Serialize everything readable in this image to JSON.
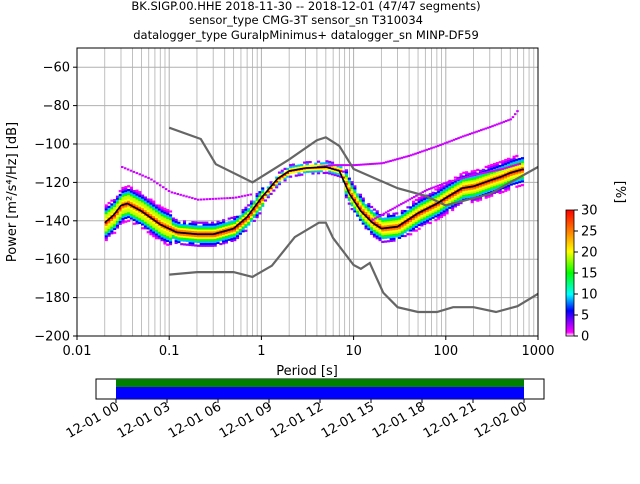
{
  "chart_data": {
    "type": "heatmap",
    "title_lines": [
      "BK.SIGP.00.HHE   2018-11-30 -- 2018-12-01  (47/47 segments)",
      "sensor_type CMG-3T sensor_sn T310034",
      "datalogger_type GuralpMinimus+ datalogger_sn MINP-DF59"
    ],
    "xlabel": "Period [s]",
    "ylabel": "Power [m²/s⁴/Hz] [dB]",
    "xscale": "log",
    "xlim": [
      0.01,
      1000
    ],
    "ylim": [
      -200,
      -50
    ],
    "xticks": [
      {
        "value": 0.01,
        "label": "0.01"
      },
      {
        "value": 0.1,
        "label": "0.1"
      },
      {
        "value": 1,
        "label": "1"
      },
      {
        "value": 10,
        "label": "10"
      },
      {
        "value": 100,
        "label": "100"
      },
      {
        "value": 1000,
        "label": "1000"
      }
    ],
    "yticks": [
      {
        "value": -60,
        "label": "−60"
      },
      {
        "value": -80,
        "label": "−80"
      },
      {
        "value": -100,
        "label": "−100"
      },
      {
        "value": -120,
        "label": "−120"
      },
      {
        "value": -140,
        "label": "−140"
      },
      {
        "value": -160,
        "label": "−160"
      },
      {
        "value": -180,
        "label": "−180"
      },
      {
        "value": -200,
        "label": "−200"
      }
    ],
    "grid": true,
    "noise_model_high": [
      [
        0.1,
        -91.5
      ],
      [
        0.22,
        -97.4
      ],
      [
        0.32,
        -110.5
      ],
      [
        0.8,
        -120
      ],
      [
        2,
        -108
      ],
      [
        4,
        -98
      ],
      [
        5,
        -96.5
      ],
      [
        7,
        -101
      ],
      [
        10,
        -113
      ],
      [
        30,
        -123
      ],
      [
        60,
        -127
      ],
      [
        100,
        -132
      ],
      [
        300,
        -126
      ],
      [
        1000,
        -112
      ]
    ],
    "noise_model_low": [
      [
        0.1,
        -168
      ],
      [
        0.2,
        -166.7
      ],
      [
        0.5,
        -166.7
      ],
      [
        0.8,
        -169.2
      ],
      [
        1.3,
        -163.4
      ],
      [
        2.3,
        -148.5
      ],
      [
        4.2,
        -141
      ],
      [
        5,
        -141
      ],
      [
        6,
        -149
      ],
      [
        10,
        -163
      ],
      [
        12,
        -165
      ],
      [
        15,
        -162
      ],
      [
        21,
        -177.5
      ],
      [
        30,
        -185
      ],
      [
        50,
        -187.5
      ],
      [
        80,
        -187.5
      ],
      [
        120,
        -185
      ],
      [
        200,
        -185
      ],
      [
        350,
        -187.5
      ],
      [
        600,
        -184.5
      ],
      [
        1000,
        -178
      ]
    ],
    "mode_curve": [
      [
        0.02,
        -141
      ],
      [
        0.025,
        -137
      ],
      [
        0.03,
        -132
      ],
      [
        0.035,
        -131
      ],
      [
        0.05,
        -135
      ],
      [
        0.08,
        -142
      ],
      [
        0.12,
        -146
      ],
      [
        0.2,
        -147
      ],
      [
        0.3,
        -147
      ],
      [
        0.5,
        -144
      ],
      [
        0.7,
        -138
      ],
      [
        1,
        -128
      ],
      [
        1.5,
        -118
      ],
      [
        2,
        -114
      ],
      [
        3,
        -112.5
      ],
      [
        5,
        -112
      ],
      [
        7,
        -114
      ],
      [
        9,
        -126
      ],
      [
        12,
        -135
      ],
      [
        16,
        -141
      ],
      [
        20,
        -144
      ],
      [
        30,
        -143
      ],
      [
        50,
        -136
      ],
      [
        80,
        -131
      ],
      [
        100,
        -128
      ],
      [
        150,
        -123
      ],
      [
        200,
        -122
      ],
      [
        300,
        -119
      ],
      [
        400,
        -117
      ],
      [
        500,
        -115
      ],
      [
        700,
        -113
      ]
    ],
    "colorbar": {
      "label": "[%]",
      "min": 0,
      "max": 30,
      "ticks": [
        {
          "value": 0,
          "label": "0"
        },
        {
          "value": 5,
          "label": "5"
        },
        {
          "value": 10,
          "label": "10"
        },
        {
          "value": 15,
          "label": "15"
        },
        {
          "value": 20,
          "label": "20"
        },
        {
          "value": 25,
          "label": "25"
        },
        {
          "value": 30,
          "label": "30"
        }
      ]
    },
    "time_axis": {
      "labels": [
        "12-01 00",
        "12-01 03",
        "12-01 06",
        "12-01 09",
        "12-01 12",
        "12-01 15",
        "12-01 18",
        "12-01 21",
        "12-02 00"
      ],
      "coverage_colors": [
        "#008000",
        "#0000ff"
      ]
    }
  }
}
